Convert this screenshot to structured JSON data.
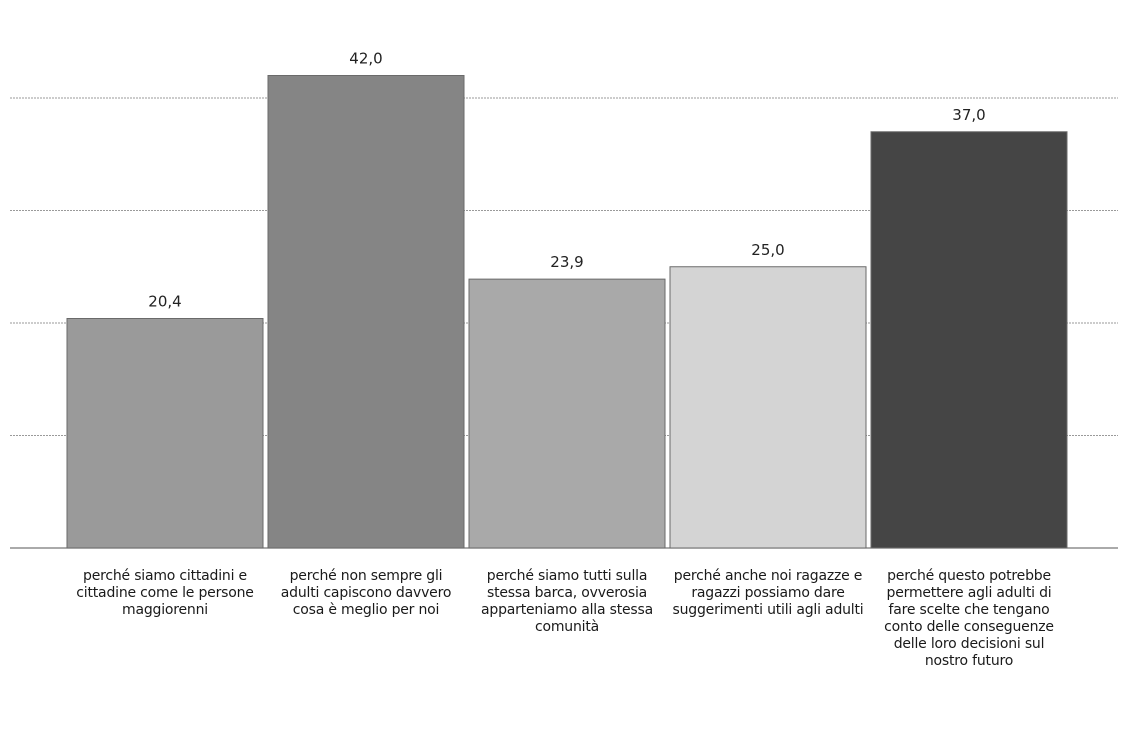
{
  "chart_data": {
    "type": "bar",
    "categories": [
      "perché siamo cittadini e cittadine come le persone maggiorenni",
      "perché non sempre gli adulti capiscono davvero cosa è meglio per noi",
      "perché siamo tutti sulla stessa barca, ovverosia apparteniamo alla stessa comunità",
      "perché anche noi ragazze e ragazzi possiamo dare suggerimenti utili agli adulti",
      "perché questo potrebbe permettere agli adulti di fare scelte che tengano conto delle conseguenze delle loro decisioni sul nostro futuro"
    ],
    "values": [
      20.4,
      42.0,
      23.9,
      25.0,
      37.0
    ],
    "value_labels": [
      "20,4",
      "42,0",
      "23,9",
      "25,0",
      "37,0"
    ],
    "bar_colors": [
      "#9a9a9a",
      "#858585",
      "#a9a9a9",
      "#d4d4d4",
      "#454545"
    ],
    "ylim": [
      0,
      40
    ],
    "gridlines": [
      0,
      10,
      20,
      30,
      40
    ],
    "grid": true,
    "title": "",
    "xlabel": "",
    "ylabel": ""
  }
}
